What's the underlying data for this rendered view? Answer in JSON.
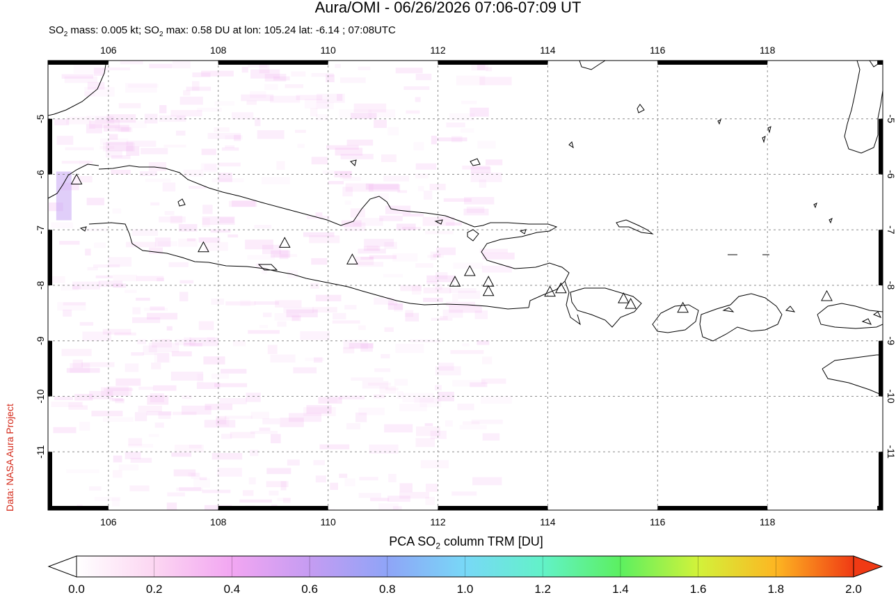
{
  "title": "Aura/OMI - 06/26/2026 07:06-07:09 UT",
  "subtitle": {
    "part1": "SO",
    "sub1": "2",
    "part2": " mass: 0.005 kt; SO",
    "sub2": "2",
    "part3": " max: 0.58 DU at lon: 105.24 lat: -6.14 ; 07:08UTC"
  },
  "credit": "Data: NASA Aura Project",
  "map": {
    "lon_range": [
      104.9,
      120.1
    ],
    "lat_range": [
      -12.05,
      -3.95
    ],
    "lon_ticks": [
      "106",
      "108",
      "110",
      "112",
      "114",
      "116",
      "118"
    ],
    "lat_ticks": [
      "-5",
      "-6",
      "-7",
      "-8",
      "-9",
      "-10",
      "-11"
    ],
    "grid": "dotted",
    "volcano_marker": "triangle-icon",
    "volcanoes": [
      {
        "lon": 105.42,
        "lat": -6.1
      },
      {
        "lon": 107.73,
        "lat": -7.32
      },
      {
        "lon": 109.21,
        "lat": -7.24
      },
      {
        "lon": 110.44,
        "lat": -7.54
      },
      {
        "lon": 112.31,
        "lat": -7.94
      },
      {
        "lon": 112.58,
        "lat": -7.75
      },
      {
        "lon": 112.92,
        "lat": -7.94
      },
      {
        "lon": 112.92,
        "lat": -8.11
      },
      {
        "lon": 114.04,
        "lat": -8.12
      },
      {
        "lon": 114.24,
        "lat": -8.06
      },
      {
        "lon": 115.38,
        "lat": -8.24
      },
      {
        "lon": 115.51,
        "lat": -8.34
      },
      {
        "lon": 116.46,
        "lat": -8.41
      },
      {
        "lon": 119.08,
        "lat": -8.2
      }
    ],
    "colors": {
      "land_outline": "#000000",
      "grid": "#8c8c8c",
      "so2_tint": "#f2b0f0"
    }
  },
  "colorbar": {
    "title_main": "PCA SO",
    "title_sub": "2",
    "title_end": " column TRM [DU]",
    "labels": [
      "0.0",
      "0.2",
      "0.4",
      "0.6",
      "0.8",
      "1.0",
      "1.2",
      "1.4",
      "1.6",
      "1.8",
      "2.0"
    ],
    "colors": [
      "#ffffff",
      "#fcd6f2",
      "#f2a6f2",
      "#c59cf2",
      "#8fa4f7",
      "#78d8f7",
      "#62f2c8",
      "#5cf060",
      "#d2f23a",
      "#fdb622",
      "#f03a14"
    ]
  }
}
